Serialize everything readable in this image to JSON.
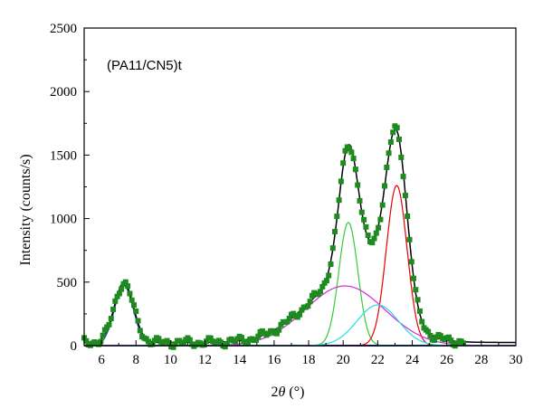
{
  "chart_data": {
    "type": "scatter",
    "title": "",
    "annotation": "(PA11/CN5)t",
    "xlabel_parts": [
      "2",
      "θ",
      " (°)"
    ],
    "ylabel": "Intensity (counts/s)",
    "xlim": [
      5,
      30
    ],
    "ylim": [
      0,
      2500
    ],
    "xticks": [
      6,
      8,
      10,
      12,
      14,
      16,
      18,
      20,
      22,
      24,
      26,
      28,
      30
    ],
    "yticks": [
      0,
      500,
      1000,
      1500,
      2000,
      2500
    ],
    "grid": false,
    "legend": "none",
    "fit_components": [
      {
        "color": "#1e3fbf",
        "center": 7.3,
        "amplitude": 470,
        "width": 0.55
      },
      {
        "color": "#33cc33",
        "center": 20.3,
        "amplitude": 970,
        "width": 0.55
      },
      {
        "color": "#e60000",
        "center": 23.1,
        "amplitude": 1260,
        "width": 0.6
      },
      {
        "color": "#dd22dd",
        "center": 20.1,
        "amplitude": 470,
        "width": 2.3
      },
      {
        "color": "#22dddd",
        "center": 22.0,
        "amplitude": 320,
        "width": 1.2
      }
    ],
    "envelope_color": "#000000",
    "measured_color": "#1f8a1f",
    "measured_range": [
      5,
      27
    ],
    "measured_step": 0.12,
    "baseline_color": "#2233cc"
  }
}
